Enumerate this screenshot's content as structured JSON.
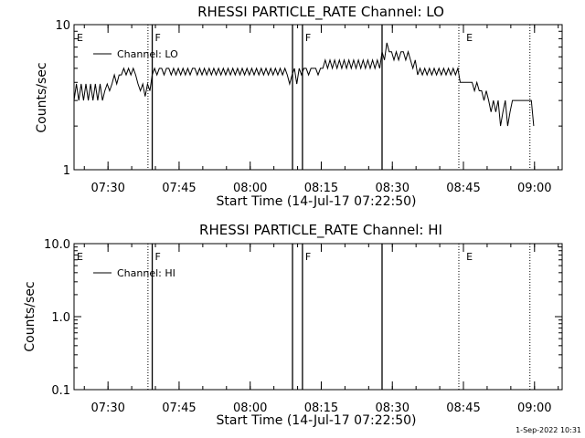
{
  "footer": {
    "timestamp": "1-Sep-2022 10:31"
  },
  "chart_data": [
    {
      "type": "line",
      "title": "RHESSI PARTICLE_RATE Channel: LO",
      "xlabel": "Start Time (14-Jul-17 07:22:50)",
      "ylabel": "Counts/sec",
      "yscale": "log",
      "ylim": [
        1,
        10
      ],
      "y_tick_labels": [
        "1",
        "10"
      ],
      "xlim_minutes": [
        0,
        103
      ],
      "x_tick_labels": [
        "07:30",
        "07:45",
        "08:00",
        "08:15",
        "08:30",
        "08:45",
        "09:00"
      ],
      "x_tick_minutes": [
        7.17,
        22.17,
        37.17,
        52.17,
        67.17,
        82.17,
        97.17
      ],
      "legend": {
        "label": "Channel: LO",
        "position": "top-left"
      },
      "flag_labels": [
        {
          "text": "E",
          "minute": 0
        },
        {
          "text": "F",
          "minute": 16.5
        },
        {
          "text": "F",
          "minute": 48.2
        },
        {
          "text": "E",
          "minute": 82.2
        }
      ],
      "solid_markers_minutes": [
        16.5,
        46.1,
        48.2,
        65.0
      ],
      "dotted_markers_minutes": [
        15.6,
        81.2,
        96.2
      ],
      "series": [
        {
          "values": [
            [
              0,
              3.0
            ],
            [
              0.5,
              3.9
            ],
            [
              1,
              3.0
            ],
            [
              1.5,
              3.9
            ],
            [
              2,
              3.0
            ],
            [
              2.5,
              3.9
            ],
            [
              3,
              3.0
            ],
            [
              3.5,
              3.9
            ],
            [
              4,
              3.0
            ],
            [
              4.5,
              3.9
            ],
            [
              5,
              3.0
            ],
            [
              5.5,
              3.9
            ],
            [
              6,
              3.0
            ],
            [
              6.5,
              3.5
            ],
            [
              7,
              3.9
            ],
            [
              7.5,
              3.5
            ],
            [
              8,
              3.9
            ],
            [
              8.5,
              4.5
            ],
            [
              9,
              3.9
            ],
            [
              9.5,
              4.5
            ],
            [
              10,
              4.5
            ],
            [
              10.5,
              5.0
            ],
            [
              11,
              4.5
            ],
            [
              11.5,
              5.0
            ],
            [
              12,
              4.5
            ],
            [
              12.5,
              5.0
            ],
            [
              13,
              4.5
            ],
            [
              13.5,
              3.9
            ],
            [
              14,
              3.5
            ],
            [
              14.5,
              3.9
            ],
            [
              15,
              3.2
            ],
            [
              15.5,
              3.9
            ],
            [
              16,
              3.5
            ],
            [
              16.5,
              4.5
            ],
            [
              17,
              5.0
            ],
            [
              17.5,
              4.5
            ],
            [
              18,
              5.0
            ],
            [
              18.5,
              5.0
            ],
            [
              19,
              4.5
            ],
            [
              19.5,
              5.0
            ],
            [
              20,
              5.0
            ],
            [
              20.5,
              4.5
            ],
            [
              21,
              5.0
            ],
            [
              21.5,
              4.5
            ],
            [
              22,
              5.0
            ],
            [
              22.5,
              4.5
            ],
            [
              23,
              5.0
            ],
            [
              23.5,
              4.5
            ],
            [
              24,
              5.0
            ],
            [
              24.5,
              4.5
            ],
            [
              25,
              5.0
            ],
            [
              25.5,
              5.0
            ],
            [
              26,
              4.5
            ],
            [
              26.5,
              5.0
            ],
            [
              27,
              4.5
            ],
            [
              27.5,
              5.0
            ],
            [
              28,
              4.5
            ],
            [
              28.5,
              5.0
            ],
            [
              29,
              4.5
            ],
            [
              29.5,
              5.0
            ],
            [
              30,
              4.5
            ],
            [
              30.5,
              5.0
            ],
            [
              31,
              4.5
            ],
            [
              31.5,
              5.0
            ],
            [
              32,
              4.5
            ],
            [
              32.5,
              5.0
            ],
            [
              33,
              4.5
            ],
            [
              33.5,
              5.0
            ],
            [
              34,
              4.5
            ],
            [
              34.5,
              5.0
            ],
            [
              35,
              4.5
            ],
            [
              35.5,
              5.0
            ],
            [
              36,
              4.5
            ],
            [
              36.5,
              5.0
            ],
            [
              37,
              4.5
            ],
            [
              37.5,
              5.0
            ],
            [
              38,
              4.5
            ],
            [
              38.5,
              5.0
            ],
            [
              39,
              4.5
            ],
            [
              39.5,
              5.0
            ],
            [
              40,
              4.5
            ],
            [
              40.5,
              5.0
            ],
            [
              41,
              4.5
            ],
            [
              41.5,
              5.0
            ],
            [
              42,
              4.5
            ],
            [
              42.5,
              5.0
            ],
            [
              43,
              4.5
            ],
            [
              43.5,
              5.0
            ],
            [
              44,
              4.5
            ],
            [
              44.5,
              5.0
            ],
            [
              45,
              4.5
            ],
            [
              45.5,
              3.9
            ],
            [
              46,
              4.5
            ],
            [
              46.5,
              5.0
            ],
            [
              47,
              3.9
            ],
            [
              47.5,
              5.0
            ],
            [
              48,
              4.5
            ],
            [
              48.5,
              5.0
            ],
            [
              49,
              5.0
            ],
            [
              49.5,
              4.5
            ],
            [
              50,
              5.0
            ],
            [
              50.5,
              5.0
            ],
            [
              51,
              5.0
            ],
            [
              51.5,
              4.5
            ],
            [
              52,
              5.0
            ],
            [
              52.5,
              5.0
            ],
            [
              53,
              5.7
            ],
            [
              53.5,
              5.0
            ],
            [
              54,
              5.7
            ],
            [
              54.5,
              5.0
            ],
            [
              55,
              5.7
            ],
            [
              55.5,
              5.0
            ],
            [
              56,
              5.7
            ],
            [
              56.5,
              5.0
            ],
            [
              57,
              5.7
            ],
            [
              57.5,
              5.0
            ],
            [
              58,
              5.7
            ],
            [
              58.5,
              5.0
            ],
            [
              59,
              5.7
            ],
            [
              59.5,
              5.0
            ],
            [
              60,
              5.7
            ],
            [
              60.5,
              5.0
            ],
            [
              61,
              5.7
            ],
            [
              61.5,
              5.0
            ],
            [
              62,
              5.7
            ],
            [
              62.5,
              5.0
            ],
            [
              63,
              5.7
            ],
            [
              63.5,
              5.0
            ],
            [
              64,
              5.7
            ],
            [
              64.5,
              5.0
            ],
            [
              65,
              6.5
            ],
            [
              65.5,
              5.7
            ],
            [
              66,
              7.5
            ],
            [
              66.5,
              6.5
            ],
            [
              67,
              6.5
            ],
            [
              67.5,
              5.7
            ],
            [
              68,
              6.5
            ],
            [
              68.5,
              5.7
            ],
            [
              69,
              6.5
            ],
            [
              69.5,
              6.5
            ],
            [
              70,
              5.7
            ],
            [
              70.5,
              6.5
            ],
            [
              71,
              5.7
            ],
            [
              71.5,
              5.0
            ],
            [
              72,
              5.7
            ],
            [
              72.5,
              4.5
            ],
            [
              73,
              5.0
            ],
            [
              73.5,
              4.5
            ],
            [
              74,
              5.0
            ],
            [
              74.5,
              4.5
            ],
            [
              75,
              5.0
            ],
            [
              75.5,
              4.5
            ],
            [
              76,
              5.0
            ],
            [
              76.5,
              4.5
            ],
            [
              77,
              5.0
            ],
            [
              77.5,
              4.5
            ],
            [
              78,
              5.0
            ],
            [
              78.5,
              4.5
            ],
            [
              79,
              5.0
            ],
            [
              79.5,
              4.5
            ],
            [
              80,
              5.0
            ],
            [
              80.5,
              4.5
            ],
            [
              81,
              5.0
            ],
            [
              81.5,
              4.0
            ],
            [
              82,
              4.0
            ],
            [
              82.5,
              4.0
            ],
            [
              83,
              4.0
            ],
            [
              83.5,
              4.0
            ],
            [
              84,
              4.0
            ],
            [
              84.5,
              3.5
            ],
            [
              85,
              4.0
            ],
            [
              85.5,
              3.5
            ],
            [
              86,
              3.5
            ],
            [
              86.5,
              3.0
            ],
            [
              87,
              3.5
            ],
            [
              87.5,
              3.0
            ],
            [
              88,
              2.5
            ],
            [
              88.5,
              3.0
            ],
            [
              89,
              2.5
            ],
            [
              89.5,
              3.0
            ],
            [
              90,
              2.0
            ],
            [
              90.5,
              2.5
            ],
            [
              91,
              3.0
            ],
            [
              91.5,
              2.0
            ],
            [
              92,
              2.5
            ],
            [
              92.5,
              3.0
            ],
            [
              93,
              3.0
            ],
            [
              93.5,
              3.0
            ],
            [
              94,
              3.0
            ],
            [
              94.5,
              3.0
            ],
            [
              95,
              3.0
            ],
            [
              95.5,
              3.0
            ],
            [
              96,
              3.0
            ],
            [
              96.5,
              3.0
            ],
            [
              97,
              2.0
            ]
          ]
        }
      ]
    },
    {
      "type": "line",
      "title": "RHESSI PARTICLE_RATE Channel: HI",
      "xlabel": "Start Time (14-Jul-17 07:22:50)",
      "ylabel": "Counts/sec",
      "yscale": "log",
      "ylim": [
        0.1,
        10
      ],
      "y_tick_labels": [
        "0.1",
        "1.0",
        "10.0"
      ],
      "xlim_minutes": [
        0,
        103
      ],
      "x_tick_labels": [
        "07:30",
        "07:45",
        "08:00",
        "08:15",
        "08:30",
        "08:45",
        "09:00"
      ],
      "x_tick_minutes": [
        7.17,
        22.17,
        37.17,
        52.17,
        67.17,
        82.17,
        97.17
      ],
      "legend": {
        "label": "Channel: HI",
        "position": "top-left"
      },
      "flag_labels": [
        {
          "text": "E",
          "minute": 0
        },
        {
          "text": "F",
          "minute": 16.5
        },
        {
          "text": "F",
          "minute": 48.2
        },
        {
          "text": "E",
          "minute": 82.2
        }
      ],
      "solid_markers_minutes": [
        16.5,
        46.1,
        48.2,
        65.0
      ],
      "dotted_markers_minutes": [
        15.6,
        81.2,
        96.2
      ],
      "series": [
        {
          "values": []
        }
      ]
    }
  ]
}
